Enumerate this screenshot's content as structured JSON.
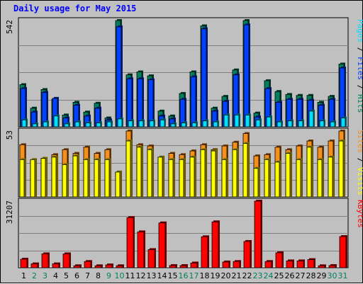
{
  "title": "Daily usage for May 2015",
  "colors": {
    "background": "#c0c0c0",
    "plot_bg": "#c0c0c0",
    "hits": "#00805c",
    "files": "#0042ff",
    "pages": "#00e0ff",
    "visits": "#f78f1b",
    "sites": "#ffff00",
    "kbytes": "#ff0000",
    "title": "#0000ff",
    "weekend": "#00805c",
    "weekday": "#000000",
    "separator": "#000000"
  },
  "chart_data": [
    {
      "type": "bar",
      "title": "Daily usage for May 2015",
      "ymax_label": "542",
      "ylim": [
        0,
        542
      ],
      "categories": [
        "1",
        "2",
        "3",
        "4",
        "5",
        "6",
        "7",
        "8",
        "9",
        "10",
        "11",
        "12",
        "13",
        "14",
        "15",
        "16",
        "17",
        "18",
        "19",
        "20",
        "21",
        "22",
        "23",
        "24",
        "25",
        "26",
        "27",
        "28",
        "29",
        "30",
        "31"
      ],
      "weekend": [
        false,
        true,
        true,
        false,
        false,
        false,
        false,
        false,
        true,
        true,
        false,
        false,
        false,
        false,
        false,
        true,
        true,
        false,
        false,
        false,
        false,
        false,
        true,
        true,
        false,
        false,
        false,
        false,
        false,
        true,
        true
      ],
      "legend": [
        {
          "label": "Pages",
          "color": "#00e0ff"
        },
        {
          "label": "Files",
          "color": "#0042ff"
        },
        {
          "label": "Hits",
          "color": "#00805c"
        }
      ],
      "separator": "/",
      "series": [
        {
          "name": "Hits",
          "values": [
            215,
            95,
            190,
            140,
            60,
            125,
            75,
            120,
            45,
            545,
            265,
            280,
            260,
            80,
            55,
            170,
            280,
            515,
            95,
            155,
            290,
            545,
            70,
            235,
            180,
            165,
            160,
            160,
            125,
            155,
            320
          ]
        },
        {
          "name": "Files",
          "values": [
            195,
            75,
            175,
            145,
            45,
            110,
            55,
            95,
            35,
            510,
            245,
            245,
            240,
            55,
            40,
            140,
            255,
            500,
            80,
            130,
            265,
            520,
            50,
            195,
            125,
            140,
            140,
            135,
            110,
            140,
            300
          ]
        },
        {
          "name": "Pages",
          "values": [
            35,
            15,
            25,
            55,
            15,
            25,
            20,
            20,
            25,
            40,
            30,
            30,
            30,
            35,
            15,
            20,
            20,
            30,
            25,
            60,
            60,
            60,
            35,
            50,
            25,
            30,
            30,
            80,
            30,
            25,
            45
          ]
        }
      ]
    },
    {
      "type": "bar",
      "ymax_label": "53",
      "ylim": [
        0,
        53
      ],
      "categories": [
        "1",
        "2",
        "3",
        "4",
        "5",
        "6",
        "7",
        "8",
        "9",
        "10",
        "11",
        "12",
        "13",
        "14",
        "15",
        "16",
        "17",
        "18",
        "19",
        "20",
        "21",
        "22",
        "23",
        "24",
        "25",
        "26",
        "27",
        "28",
        "29",
        "30",
        "31"
      ],
      "legend": [
        {
          "label": "Sites",
          "color": "#f78f1b"
        },
        {
          "label": "Visits",
          "color": "#ffff00"
        }
      ],
      "separator": "/",
      "series": [
        {
          "name": "Visits",
          "values": [
            42,
            30,
            31,
            34,
            38,
            35,
            40,
            35,
            38,
            20,
            53,
            42,
            41,
            32,
            35,
            34,
            37,
            42,
            38,
            41,
            44,
            51,
            33,
            34,
            40,
            38,
            41,
            45,
            40,
            45,
            53
          ]
        },
        {
          "name": "Sites",
          "values": [
            30,
            30,
            31,
            32,
            26,
            33,
            30,
            30,
            30,
            20,
            45,
            40,
            38,
            32,
            30,
            30,
            32,
            38,
            37,
            30,
            38,
            43,
            23,
            30,
            28,
            35,
            30,
            40,
            30,
            32,
            45
          ]
        }
      ]
    },
    {
      "type": "bar",
      "ymax_label": "31207",
      "ylim": [
        0,
        31207
      ],
      "categories": [
        "1",
        "2",
        "3",
        "4",
        "5",
        "6",
        "7",
        "8",
        "9",
        "10",
        "11",
        "12",
        "13",
        "14",
        "15",
        "16",
        "17",
        "18",
        "19",
        "20",
        "21",
        "22",
        "23",
        "24",
        "25",
        "26",
        "27",
        "28",
        "29",
        "30",
        "31"
      ],
      "legend": [
        {
          "label": "KBytes",
          "color": "#ff0000"
        }
      ],
      "series": [
        {
          "name": "KBytes",
          "values": [
            4000,
            1800,
            6500,
            1800,
            6500,
            900,
            2900,
            900,
            1300,
            900,
            23500,
            16800,
            8500,
            21000,
            1000,
            1000,
            2200,
            14500,
            21500,
            2700,
            2900,
            12300,
            31207,
            2900,
            7000,
            3200,
            3200,
            3800,
            900,
            1000,
            14600
          ]
        }
      ]
    }
  ]
}
